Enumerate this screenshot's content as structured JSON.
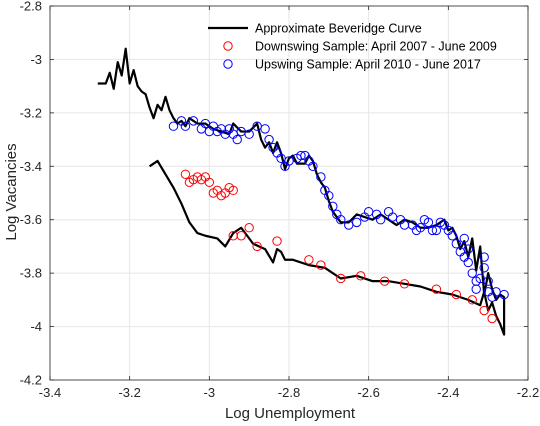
{
  "chart_data": {
    "type": "line",
    "xlabel": "Log Unemployment",
    "ylabel": "Log Vacancies",
    "xlim": [
      -3.4,
      -2.2
    ],
    "ylim": [
      -4.2,
      -2.8
    ],
    "xticks": [
      -3.4,
      -3.2,
      -3.0,
      -2.8,
      -2.6,
      -2.4,
      -2.2
    ],
    "yticks": [
      -4.2,
      -4.0,
      -3.8,
      -3.6,
      -3.4,
      -3.2,
      -3.0,
      -2.8
    ],
    "xtick_labels": [
      "-3.4",
      "-3.2",
      "-3",
      "-2.8",
      "-2.6",
      "-2.4",
      "-2.2"
    ],
    "ytick_labels": [
      "-4.2",
      "-4",
      "-3.8",
      "-3.6",
      "-3.4",
      "-3.2",
      "-3",
      "-2.8"
    ],
    "grid": true,
    "legend_position": "top-right",
    "series": [
      {
        "name": "Approximate Beveridge Curve",
        "kind": "line",
        "color": "#000000",
        "points": [
          [
            -3.28,
            -3.09
          ],
          [
            -3.26,
            -3.09
          ],
          [
            -3.25,
            -3.05
          ],
          [
            -3.24,
            -3.11
          ],
          [
            -3.23,
            -3.01
          ],
          [
            -3.22,
            -3.06
          ],
          [
            -3.21,
            -2.96
          ],
          [
            -3.2,
            -3.09
          ],
          [
            -3.19,
            -3.04
          ],
          [
            -3.18,
            -3.1
          ],
          [
            -3.17,
            -3.12
          ],
          [
            -3.16,
            -3.13
          ],
          [
            -3.15,
            -3.18
          ],
          [
            -3.14,
            -3.22
          ],
          [
            -3.13,
            -3.17
          ],
          [
            -3.12,
            -3.19
          ],
          [
            -3.11,
            -3.14
          ],
          [
            -3.1,
            -3.19
          ],
          [
            -3.09,
            -3.22
          ],
          [
            -3.08,
            -3.24
          ],
          [
            -3.07,
            -3.23
          ],
          [
            -3.06,
            -3.25
          ],
          [
            -3.05,
            -3.22
          ],
          [
            -3.03,
            -3.24
          ],
          [
            -3.01,
            -3.24
          ],
          [
            -2.99,
            -3.26
          ],
          [
            -2.97,
            -3.27
          ],
          [
            -2.95,
            -3.28
          ],
          [
            -2.94,
            -3.24
          ],
          [
            -2.92,
            -3.27
          ],
          [
            -2.9,
            -3.27
          ],
          [
            -2.88,
            -3.24
          ],
          [
            -2.87,
            -3.3
          ],
          [
            -2.86,
            -3.33
          ],
          [
            -2.85,
            -3.31
          ],
          [
            -2.84,
            -3.35
          ],
          [
            -2.83,
            -3.31
          ],
          [
            -2.82,
            -3.35
          ],
          [
            -2.81,
            -3.41
          ],
          [
            -2.8,
            -3.37
          ],
          [
            -2.79,
            -3.36
          ],
          [
            -2.78,
            -3.39
          ],
          [
            -2.76,
            -3.39
          ],
          [
            -2.75,
            -3.36
          ],
          [
            -2.74,
            -3.38
          ],
          [
            -2.73,
            -3.43
          ],
          [
            -2.72,
            -3.46
          ],
          [
            -2.71,
            -3.48
          ],
          [
            -2.7,
            -3.53
          ],
          [
            -2.69,
            -3.57
          ],
          [
            -2.68,
            -3.59
          ],
          [
            -2.67,
            -3.61
          ],
          [
            -2.65,
            -3.61
          ],
          [
            -2.63,
            -3.58
          ],
          [
            -2.61,
            -3.59
          ],
          [
            -2.59,
            -3.6
          ],
          [
            -2.57,
            -3.58
          ],
          [
            -2.55,
            -3.6
          ],
          [
            -2.53,
            -3.62
          ],
          [
            -2.51,
            -3.6
          ],
          [
            -2.49,
            -3.61
          ],
          [
            -2.47,
            -3.63
          ],
          [
            -2.45,
            -3.63
          ],
          [
            -2.43,
            -3.62
          ],
          [
            -2.41,
            -3.6
          ],
          [
            -2.4,
            -3.64
          ],
          [
            -2.39,
            -3.63
          ],
          [
            -2.38,
            -3.66
          ],
          [
            -2.37,
            -3.71
          ],
          [
            -2.36,
            -3.68
          ],
          [
            -2.35,
            -3.74
          ],
          [
            -2.34,
            -3.67
          ],
          [
            -2.33,
            -3.79
          ],
          [
            -2.32,
            -3.7
          ],
          [
            -2.31,
            -3.88
          ],
          [
            -2.3,
            -3.8
          ],
          [
            -2.29,
            -3.86
          ],
          [
            -2.28,
            -3.9
          ],
          [
            -2.27,
            -3.88
          ],
          [
            -2.26,
            -3.89
          ],
          [
            -2.26,
            -4.03
          ],
          [
            -2.27,
            -3.99
          ],
          [
            -2.28,
            -3.96
          ],
          [
            -2.29,
            -3.91
          ],
          [
            -2.3,
            -3.94
          ],
          [
            -2.31,
            -3.87
          ],
          [
            -2.32,
            -3.92
          ],
          [
            -2.35,
            -3.9
          ],
          [
            -2.39,
            -3.88
          ],
          [
            -2.43,
            -3.87
          ],
          [
            -2.47,
            -3.85
          ],
          [
            -2.51,
            -3.84
          ],
          [
            -2.55,
            -3.83
          ],
          [
            -2.59,
            -3.83
          ],
          [
            -2.63,
            -3.81
          ],
          [
            -2.67,
            -3.82
          ],
          [
            -2.71,
            -3.78
          ],
          [
            -2.75,
            -3.77
          ],
          [
            -2.79,
            -3.75
          ],
          [
            -2.81,
            -3.75
          ],
          [
            -2.82,
            -3.72
          ],
          [
            -2.83,
            -3.71
          ],
          [
            -2.84,
            -3.76
          ],
          [
            -2.86,
            -3.71
          ],
          [
            -2.89,
            -3.69
          ],
          [
            -2.92,
            -3.63
          ],
          [
            -2.94,
            -3.65
          ],
          [
            -2.96,
            -3.7
          ],
          [
            -2.98,
            -3.67
          ],
          [
            -3.01,
            -3.66
          ],
          [
            -3.03,
            -3.65
          ],
          [
            -3.05,
            -3.61
          ],
          [
            -3.07,
            -3.54
          ],
          [
            -3.09,
            -3.48
          ],
          [
            -3.11,
            -3.43
          ],
          [
            -3.13,
            -3.38
          ],
          [
            -3.15,
            -3.4
          ]
        ]
      },
      {
        "name": "Downswing Sample: April 2007 - June 2009",
        "kind": "scatter",
        "color": "#ff0000",
        "points": [
          [
            -3.06,
            -3.43
          ],
          [
            -3.05,
            -3.46
          ],
          [
            -3.04,
            -3.45
          ],
          [
            -3.03,
            -3.44
          ],
          [
            -3.02,
            -3.45
          ],
          [
            -3.01,
            -3.44
          ],
          [
            -3.0,
            -3.46
          ],
          [
            -2.99,
            -3.5
          ],
          [
            -2.98,
            -3.49
          ],
          [
            -2.97,
            -3.51
          ],
          [
            -2.96,
            -3.5
          ],
          [
            -2.95,
            -3.48
          ],
          [
            -2.94,
            -3.49
          ],
          [
            -2.94,
            -3.66
          ],
          [
            -2.92,
            -3.66
          ],
          [
            -2.9,
            -3.63
          ],
          [
            -2.88,
            -3.7
          ],
          [
            -2.83,
            -3.68
          ],
          [
            -2.75,
            -3.75
          ],
          [
            -2.72,
            -3.77
          ],
          [
            -2.67,
            -3.82
          ],
          [
            -2.62,
            -3.81
          ],
          [
            -2.56,
            -3.83
          ],
          [
            -2.51,
            -3.84
          ],
          [
            -2.43,
            -3.86
          ],
          [
            -2.38,
            -3.88
          ],
          [
            -2.34,
            -3.9
          ],
          [
            -2.31,
            -3.94
          ],
          [
            -2.29,
            -3.97
          ]
        ]
      },
      {
        "name": "Upswing Sample: April 2010 - June 2017",
        "kind": "scatter",
        "color": "#0000ff",
        "points": [
          [
            -3.09,
            -3.25
          ],
          [
            -3.07,
            -3.23
          ],
          [
            -3.06,
            -3.25
          ],
          [
            -3.04,
            -3.23
          ],
          [
            -3.02,
            -3.26
          ],
          [
            -3.01,
            -3.24
          ],
          [
            -3.0,
            -3.27
          ],
          [
            -2.99,
            -3.25
          ],
          [
            -2.98,
            -3.27
          ],
          [
            -2.97,
            -3.26
          ],
          [
            -2.96,
            -3.28
          ],
          [
            -2.95,
            -3.26
          ],
          [
            -2.94,
            -3.28
          ],
          [
            -2.93,
            -3.3
          ],
          [
            -2.92,
            -3.27
          ],
          [
            -2.9,
            -3.28
          ],
          [
            -2.88,
            -3.25
          ],
          [
            -2.86,
            -3.26
          ],
          [
            -2.85,
            -3.3
          ],
          [
            -2.84,
            -3.33
          ],
          [
            -2.83,
            -3.35
          ],
          [
            -2.82,
            -3.37
          ],
          [
            -2.81,
            -3.4
          ],
          [
            -2.8,
            -3.38
          ],
          [
            -2.78,
            -3.37
          ],
          [
            -2.77,
            -3.36
          ],
          [
            -2.76,
            -3.36
          ],
          [
            -2.75,
            -3.38
          ],
          [
            -2.74,
            -3.4
          ],
          [
            -2.72,
            -3.44
          ],
          [
            -2.71,
            -3.49
          ],
          [
            -2.7,
            -3.51
          ],
          [
            -2.69,
            -3.55
          ],
          [
            -2.68,
            -3.58
          ],
          [
            -2.67,
            -3.6
          ],
          [
            -2.65,
            -3.62
          ],
          [
            -2.63,
            -3.61
          ],
          [
            -2.61,
            -3.59
          ],
          [
            -2.6,
            -3.57
          ],
          [
            -2.58,
            -3.58
          ],
          [
            -2.57,
            -3.6
          ],
          [
            -2.55,
            -3.57
          ],
          [
            -2.54,
            -3.59
          ],
          [
            -2.52,
            -3.6
          ],
          [
            -2.51,
            -3.62
          ],
          [
            -2.49,
            -3.62
          ],
          [
            -2.48,
            -3.64
          ],
          [
            -2.47,
            -3.63
          ],
          [
            -2.46,
            -3.6
          ],
          [
            -2.45,
            -3.61
          ],
          [
            -2.44,
            -3.64
          ],
          [
            -2.43,
            -3.64
          ],
          [
            -2.42,
            -3.61
          ],
          [
            -2.41,
            -3.62
          ],
          [
            -2.4,
            -3.64
          ],
          [
            -2.39,
            -3.66
          ],
          [
            -2.38,
            -3.69
          ],
          [
            -2.37,
            -3.72
          ],
          [
            -2.36,
            -3.67
          ],
          [
            -2.36,
            -3.74
          ],
          [
            -2.35,
            -3.71
          ],
          [
            -2.35,
            -3.76
          ],
          [
            -2.34,
            -3.8
          ],
          [
            -2.33,
            -3.83
          ],
          [
            -2.33,
            -3.86
          ],
          [
            -2.32,
            -3.82
          ],
          [
            -2.31,
            -3.78
          ],
          [
            -2.31,
            -3.74
          ],
          [
            -2.3,
            -3.83
          ],
          [
            -2.3,
            -3.87
          ],
          [
            -2.29,
            -3.89
          ],
          [
            -2.28,
            -3.87
          ],
          [
            -2.26,
            -3.88
          ]
        ]
      }
    ]
  }
}
